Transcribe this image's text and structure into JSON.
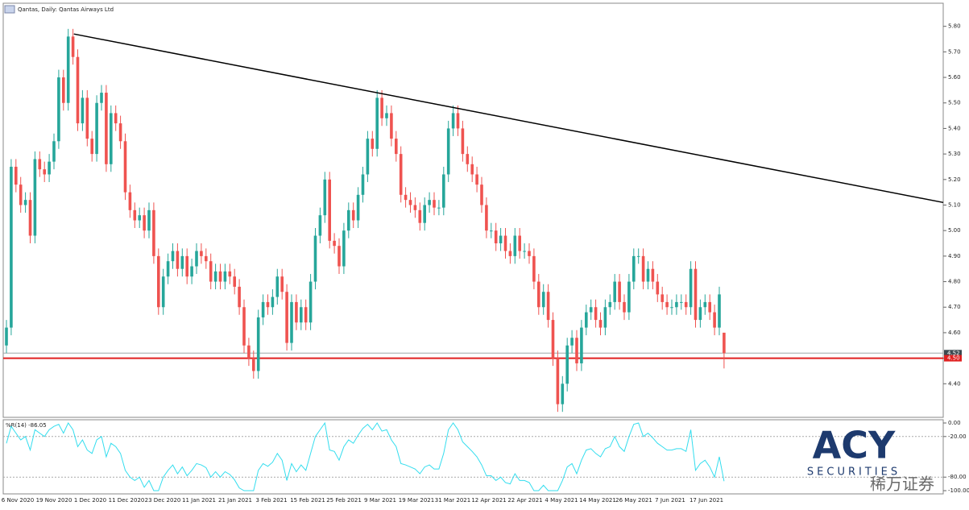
{
  "chart_data": {
    "type": "candlestick",
    "title": "Qantas, Daily: Qantas Airways Ltd",
    "up_color": "#26a69a",
    "down_color": "#ef5350",
    "ylim": [
      4.3,
      5.84
    ],
    "yticks": [
      {
        "value": 5.8,
        "label": "5.80"
      },
      {
        "value": 5.7,
        "label": "5.70"
      },
      {
        "value": 5.6,
        "label": "5.60"
      },
      {
        "value": 5.5,
        "label": "5.50"
      },
      {
        "value": 5.4,
        "label": "5.40"
      },
      {
        "value": 5.3,
        "label": "5.30"
      },
      {
        "value": 5.2,
        "label": "5.20"
      },
      {
        "value": 5.1,
        "label": "5.10"
      },
      {
        "value": 5.0,
        "label": "5.00"
      },
      {
        "value": 4.9,
        "label": "4.90"
      },
      {
        "value": 4.8,
        "label": "4.80"
      },
      {
        "value": 4.7,
        "label": "4.70"
      },
      {
        "value": 4.6,
        "label": "4.60"
      },
      {
        "value": 4.5,
        "label": "4.50"
      },
      {
        "value": 4.4,
        "label": "4.40"
      }
    ],
    "price_line": {
      "value": 4.52,
      "label": "4.52",
      "color": "#9ea7a8"
    },
    "level_line": {
      "value": 4.5,
      "label": "4.50",
      "color": "#e02020"
    },
    "trendline": {
      "from": 5.77,
      "to": 5.11,
      "color": "#000000"
    },
    "date_labels": [
      "6 Nov 2020",
      "19 Nov 2020",
      "1 Dec 2020",
      "11 Dec 2020",
      "23 Dec 2020",
      "11 Jan 2021",
      "21 Jan 2021",
      "3 Feb 2021",
      "15 Feb 2021",
      "25 Feb 2021",
      "9 Mar 2021",
      "19 Mar 2021",
      "31 Mar 2021",
      "12 Apr 2021",
      "22 Apr 2021",
      "4 May 2021",
      "14 May 2021",
      "26 May 2021",
      "7 Jun 2021",
      "17 Jun 2021"
    ],
    "candles": [
      [
        4.55,
        4.65,
        4.52,
        4.62
      ],
      [
        4.62,
        5.28,
        4.59,
        5.25
      ],
      [
        5.25,
        5.28,
        5.15,
        5.18
      ],
      [
        5.18,
        5.21,
        5.07,
        5.1
      ],
      [
        5.1,
        5.15,
        5.07,
        5.12
      ],
      [
        5.12,
        5.15,
        4.95,
        4.98
      ],
      [
        4.98,
        5.31,
        4.95,
        5.28
      ],
      [
        5.28,
        5.31,
        5.21,
        5.24
      ],
      [
        5.24,
        5.27,
        5.19,
        5.22
      ],
      [
        5.22,
        5.3,
        5.19,
        5.27
      ],
      [
        5.27,
        5.38,
        5.24,
        5.35
      ],
      [
        5.35,
        5.63,
        5.32,
        5.6
      ],
      [
        5.6,
        5.63,
        5.47,
        5.5
      ],
      [
        5.5,
        5.79,
        5.47,
        5.76
      ],
      [
        5.76,
        5.79,
        5.65,
        5.68
      ],
      [
        5.68,
        5.71,
        5.39,
        5.42
      ],
      [
        5.42,
        5.55,
        5.39,
        5.52
      ],
      [
        5.52,
        5.55,
        5.33,
        5.36
      ],
      [
        5.36,
        5.39,
        5.27,
        5.3
      ],
      [
        5.3,
        5.53,
        5.27,
        5.5
      ],
      [
        5.5,
        5.57,
        5.47,
        5.54
      ],
      [
        5.54,
        5.57,
        5.23,
        5.26
      ],
      [
        5.26,
        5.49,
        5.23,
        5.46
      ],
      [
        5.46,
        5.49,
        5.39,
        5.42
      ],
      [
        5.42,
        5.45,
        5.32,
        5.35
      ],
      [
        5.35,
        5.38,
        5.12,
        5.15
      ],
      [
        5.15,
        5.18,
        5.05,
        5.08
      ],
      [
        5.08,
        5.11,
        5.01,
        5.04
      ],
      [
        5.04,
        5.09,
        5.01,
        5.06
      ],
      [
        5.06,
        5.09,
        4.97,
        5.0
      ],
      [
        5.0,
        5.11,
        4.97,
        5.08
      ],
      [
        5.08,
        5.11,
        4.87,
        4.9
      ],
      [
        4.9,
        4.93,
        4.67,
        4.7
      ],
      [
        4.7,
        4.85,
        4.67,
        4.82
      ],
      [
        4.82,
        4.91,
        4.79,
        4.88
      ],
      [
        4.88,
        4.95,
        4.85,
        4.92
      ],
      [
        4.92,
        4.95,
        4.82,
        4.85
      ],
      [
        4.85,
        4.93,
        4.82,
        4.9
      ],
      [
        4.9,
        4.93,
        4.79,
        4.82
      ],
      [
        4.82,
        4.89,
        4.79,
        4.86
      ],
      [
        4.86,
        4.95,
        4.83,
        4.92
      ],
      [
        4.92,
        4.95,
        4.87,
        4.9
      ],
      [
        4.9,
        4.93,
        4.85,
        4.88
      ],
      [
        4.88,
        4.91,
        4.77,
        4.8
      ],
      [
        4.8,
        4.87,
        4.77,
        4.84
      ],
      [
        4.84,
        4.87,
        4.77,
        4.8
      ],
      [
        4.8,
        4.87,
        4.77,
        4.84
      ],
      [
        4.84,
        4.87,
        4.79,
        4.82
      ],
      [
        4.82,
        4.85,
        4.75,
        4.78
      ],
      [
        4.78,
        4.81,
        4.67,
        4.7
      ],
      [
        4.7,
        4.73,
        4.52,
        4.55
      ],
      [
        4.55,
        4.58,
        4.47,
        4.5
      ],
      [
        4.5,
        4.53,
        4.42,
        4.45
      ],
      [
        4.45,
        4.69,
        4.42,
        4.66
      ],
      [
        4.66,
        4.75,
        4.63,
        4.72
      ],
      [
        4.72,
        4.75,
        4.67,
        4.7
      ],
      [
        4.7,
        4.77,
        4.67,
        4.74
      ],
      [
        4.74,
        4.85,
        4.71,
        4.82
      ],
      [
        4.82,
        4.85,
        4.73,
        4.76
      ],
      [
        4.76,
        4.79,
        4.53,
        4.56
      ],
      [
        4.56,
        4.75,
        4.53,
        4.72
      ],
      [
        4.72,
        4.75,
        4.61,
        4.64
      ],
      [
        4.64,
        4.73,
        4.61,
        4.7
      ],
      [
        4.7,
        4.73,
        4.61,
        4.64
      ],
      [
        4.64,
        4.83,
        4.61,
        4.8
      ],
      [
        4.8,
        5.01,
        4.77,
        4.98
      ],
      [
        4.98,
        5.09,
        4.95,
        5.06
      ],
      [
        5.06,
        5.23,
        5.03,
        5.2
      ],
      [
        5.2,
        5.23,
        4.93,
        4.96
      ],
      [
        4.96,
        4.99,
        4.91,
        4.94
      ],
      [
        4.94,
        4.97,
        4.83,
        4.86
      ],
      [
        4.86,
        5.03,
        4.83,
        5.0
      ],
      [
        5.0,
        5.11,
        4.97,
        5.08
      ],
      [
        5.08,
        5.11,
        5.01,
        5.04
      ],
      [
        5.04,
        5.17,
        5.01,
        5.14
      ],
      [
        5.14,
        5.25,
        5.11,
        5.22
      ],
      [
        5.22,
        5.39,
        5.19,
        5.36
      ],
      [
        5.36,
        5.39,
        5.29,
        5.32
      ],
      [
        5.32,
        5.55,
        5.29,
        5.52
      ],
      [
        5.52,
        5.55,
        5.41,
        5.44
      ],
      [
        5.44,
        5.49,
        5.41,
        5.46
      ],
      [
        5.46,
        5.49,
        5.33,
        5.36
      ],
      [
        5.36,
        5.39,
        5.27,
        5.3
      ],
      [
        5.3,
        5.33,
        5.11,
        5.14
      ],
      [
        5.14,
        5.17,
        5.09,
        5.12
      ],
      [
        5.12,
        5.15,
        5.07,
        5.1
      ],
      [
        5.1,
        5.13,
        5.05,
        5.08
      ],
      [
        5.08,
        5.11,
        5.0,
        5.03
      ],
      [
        5.03,
        5.13,
        5.0,
        5.1
      ],
      [
        5.1,
        5.15,
        5.07,
        5.12
      ],
      [
        5.12,
        5.15,
        5.06,
        5.09
      ],
      [
        5.09,
        5.12,
        5.06,
        5.09
      ],
      [
        5.09,
        5.25,
        5.06,
        5.22
      ],
      [
        5.22,
        5.43,
        5.19,
        5.4
      ],
      [
        5.4,
        5.49,
        5.37,
        5.46
      ],
      [
        5.46,
        5.49,
        5.37,
        5.4
      ],
      [
        5.4,
        5.43,
        5.27,
        5.3
      ],
      [
        5.3,
        5.33,
        5.23,
        5.26
      ],
      [
        5.26,
        5.29,
        5.19,
        5.22
      ],
      [
        5.22,
        5.25,
        5.15,
        5.18
      ],
      [
        5.18,
        5.21,
        5.07,
        5.1
      ],
      [
        5.1,
        5.13,
        4.97,
        5.0
      ],
      [
        5.0,
        5.03,
        4.97,
        5.0
      ],
      [
        5.0,
        5.03,
        4.92,
        4.95
      ],
      [
        4.95,
        5.01,
        4.92,
        4.98
      ],
      [
        4.98,
        5.01,
        4.89,
        4.92
      ],
      [
        4.92,
        4.95,
        4.87,
        4.9
      ],
      [
        4.9,
        5.01,
        4.87,
        4.98
      ],
      [
        4.98,
        5.01,
        4.89,
        4.92
      ],
      [
        4.92,
        4.95,
        4.89,
        4.92
      ],
      [
        4.92,
        4.95,
        4.87,
        4.9
      ],
      [
        4.9,
        4.93,
        4.77,
        4.8
      ],
      [
        4.8,
        4.83,
        4.67,
        4.7
      ],
      [
        4.7,
        4.79,
        4.67,
        4.76
      ],
      [
        4.76,
        4.79,
        4.62,
        4.65
      ],
      [
        4.65,
        4.68,
        4.47,
        4.5
      ],
      [
        4.5,
        4.53,
        4.29,
        4.32
      ],
      [
        4.32,
        4.43,
        4.29,
        4.4
      ],
      [
        4.4,
        4.58,
        4.37,
        4.55
      ],
      [
        4.55,
        4.61,
        4.52,
        4.58
      ],
      [
        4.58,
        4.61,
        4.45,
        4.48
      ],
      [
        4.48,
        4.65,
        4.45,
        4.62
      ],
      [
        4.62,
        4.71,
        4.59,
        4.68
      ],
      [
        4.68,
        4.73,
        4.65,
        4.7
      ],
      [
        4.7,
        4.73,
        4.62,
        4.65
      ],
      [
        4.65,
        4.68,
        4.59,
        4.62
      ],
      [
        4.62,
        4.73,
        4.59,
        4.7
      ],
      [
        4.7,
        4.75,
        4.67,
        4.72
      ],
      [
        4.72,
        4.83,
        4.69,
        4.8
      ],
      [
        4.8,
        4.83,
        4.69,
        4.72
      ],
      [
        4.72,
        4.75,
        4.65,
        4.68
      ],
      [
        4.68,
        4.83,
        4.65,
        4.8
      ],
      [
        4.8,
        4.93,
        4.77,
        4.9
      ],
      [
        4.9,
        4.93,
        4.87,
        4.9
      ],
      [
        4.9,
        4.93,
        4.77,
        4.8
      ],
      [
        4.8,
        4.88,
        4.77,
        4.85
      ],
      [
        4.85,
        4.88,
        4.77,
        4.8
      ],
      [
        4.8,
        4.83,
        4.72,
        4.75
      ],
      [
        4.75,
        4.78,
        4.69,
        4.72
      ],
      [
        4.72,
        4.75,
        4.67,
        4.7
      ],
      [
        4.7,
        4.73,
        4.67,
        4.7
      ],
      [
        4.7,
        4.75,
        4.67,
        4.72
      ],
      [
        4.72,
        4.75,
        4.69,
        4.72
      ],
      [
        4.72,
        4.75,
        4.67,
        4.7
      ],
      [
        4.7,
        4.88,
        4.67,
        4.85
      ],
      [
        4.85,
        4.88,
        4.62,
        4.65
      ],
      [
        4.65,
        4.73,
        4.62,
        4.7
      ],
      [
        4.7,
        4.75,
        4.67,
        4.72
      ],
      [
        4.72,
        4.75,
        4.65,
        4.68
      ],
      [
        4.68,
        4.71,
        4.59,
        4.62
      ],
      [
        4.62,
        4.78,
        4.59,
        4.75
      ],
      [
        4.6,
        4.6,
        4.46,
        4.52
      ]
    ],
    "indicator": {
      "label": "%R(14) -86.05",
      "color": "#33ddee",
      "ylim": [
        -100,
        0
      ],
      "yticks": [
        {
          "value": 0,
          "label": "0.00"
        },
        {
          "value": -20,
          "label": "-20.00"
        },
        {
          "value": -80,
          "label": "-80.00"
        },
        {
          "value": -100,
          "label": "-100.00"
        }
      ],
      "values": [
        -30,
        -5,
        -15,
        -25,
        -20,
        -40,
        -10,
        -15,
        -20,
        -10,
        -5,
        -2,
        -15,
        0,
        -10,
        -35,
        -25,
        -40,
        -45,
        -25,
        -20,
        -50,
        -30,
        -35,
        -45,
        -70,
        -80,
        -85,
        -80,
        -95,
        -85,
        -100,
        -100,
        -80,
        -70,
        -62,
        -75,
        -65,
        -78,
        -70,
        -60,
        -62,
        -66,
        -80,
        -72,
        -80,
        -72,
        -76,
        -84,
        -96,
        -100,
        -100,
        -100,
        -70,
        -60,
        -64,
        -58,
        -45,
        -55,
        -85,
        -60,
        -72,
        -62,
        -70,
        -45,
        -20,
        -10,
        0,
        -40,
        -42,
        -55,
        -35,
        -25,
        -30,
        -18,
        -8,
        -2,
        -10,
        0,
        -12,
        -10,
        -25,
        -35,
        -60,
        -62,
        -65,
        -68,
        -75,
        -65,
        -62,
        -68,
        -68,
        -45,
        -10,
        0,
        -10,
        -28,
        -35,
        -42,
        -50,
        -62,
        -78,
        -78,
        -85,
        -80,
        -88,
        -90,
        -75,
        -85,
        -85,
        -88,
        -100,
        -100,
        -92,
        -100,
        -100,
        -100,
        -85,
        -65,
        -60,
        -75,
        -55,
        -40,
        -38,
        -45,
        -50,
        -38,
        -35,
        -20,
        -35,
        -42,
        -20,
        -2,
        0,
        -20,
        -15,
        -22,
        -30,
        -35,
        -40,
        -40,
        -38,
        -38,
        -42,
        -10,
        -70,
        -60,
        -55,
        -65,
        -80,
        -50,
        -86.05
      ]
    },
    "watermark": {
      "logo": "ACY",
      "line": "SECURITIES",
      "chinese": "稀万证券"
    }
  }
}
